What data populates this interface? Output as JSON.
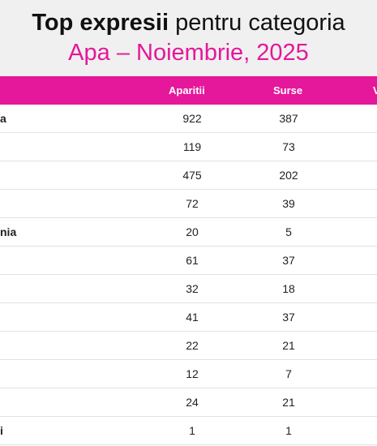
{
  "title": {
    "bold": "Top expresii",
    "rest": "pentru categoria",
    "subtitle": "Apa – Noiembrie, 2025"
  },
  "colors": {
    "accent": "#e5179b",
    "header_bg": "#f0f0f0"
  },
  "chart_data": {
    "type": "table",
    "columns": [
      "Aparitii",
      "Surse",
      "V"
    ],
    "rows": [
      {
        "name": "a",
        "aparitii": 922,
        "surse": 387
      },
      {
        "name": "",
        "aparitii": 119,
        "surse": 73
      },
      {
        "name": "",
        "aparitii": 475,
        "surse": 202
      },
      {
        "name": "",
        "aparitii": 72,
        "surse": 39
      },
      {
        "name": "nia",
        "aparitii": 20,
        "surse": 5
      },
      {
        "name": "",
        "aparitii": 61,
        "surse": 37
      },
      {
        "name": "",
        "aparitii": 32,
        "surse": 18
      },
      {
        "name": "",
        "aparitii": 41,
        "surse": 37
      },
      {
        "name": "",
        "aparitii": 22,
        "surse": 21
      },
      {
        "name": "",
        "aparitii": 12,
        "surse": 7
      },
      {
        "name": "",
        "aparitii": 24,
        "surse": 21
      },
      {
        "name": "i",
        "aparitii": 1,
        "surse": 1
      }
    ]
  }
}
